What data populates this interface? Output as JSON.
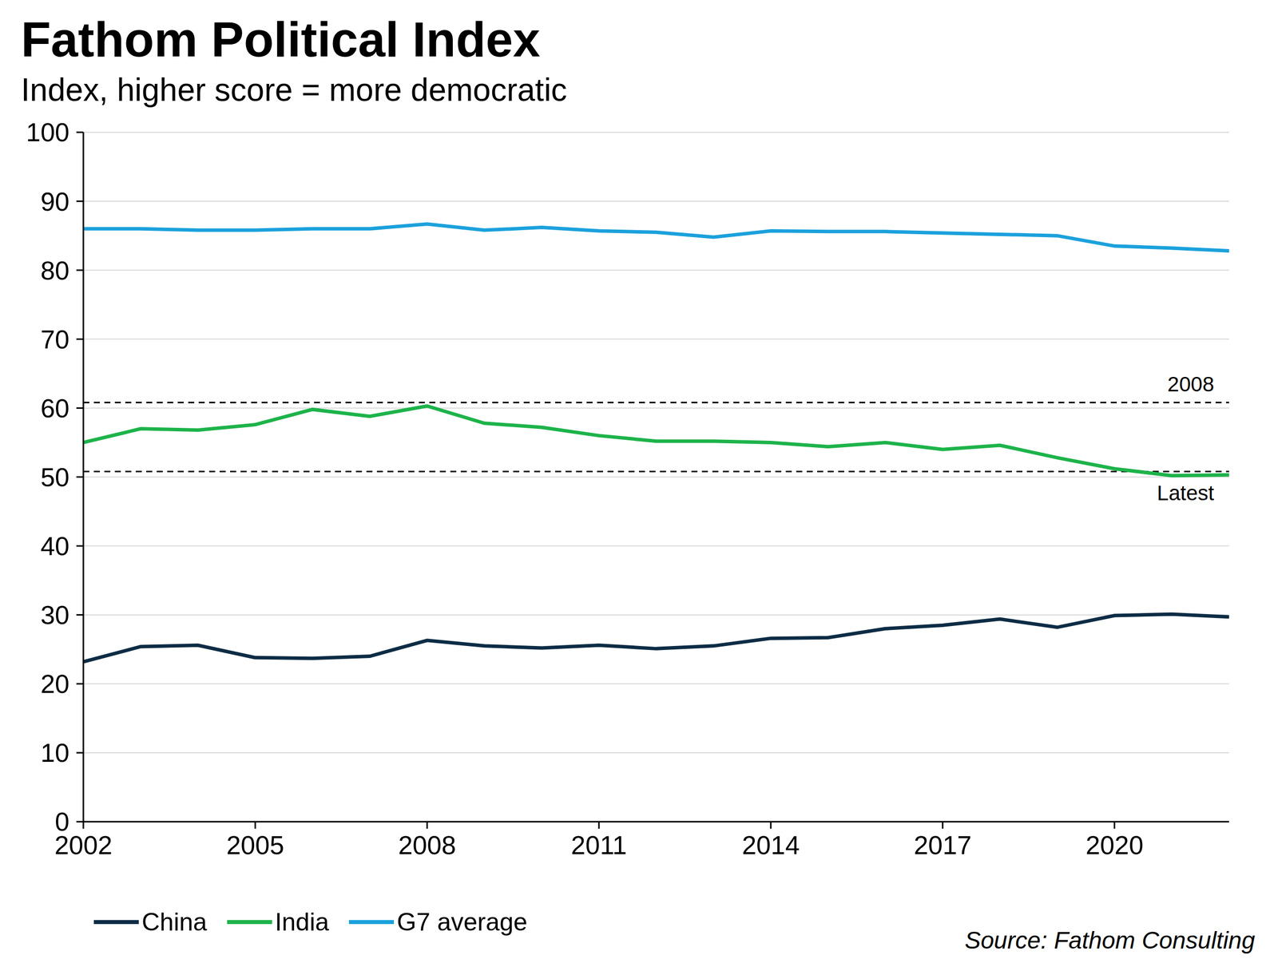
{
  "chart_data": {
    "type": "line",
    "title": "Fathom Political Index",
    "subtitle": "Index, higher score = more democratic",
    "source": "Source: Fathom Consulting",
    "x": [
      2002,
      2003,
      2004,
      2005,
      2006,
      2007,
      2008,
      2009,
      2010,
      2011,
      2012,
      2013,
      2014,
      2015,
      2016,
      2017,
      2018,
      2019,
      2020,
      2021,
      2022
    ],
    "series": [
      {
        "name": "China",
        "color": "#0d2c45",
        "values": [
          23.2,
          25.4,
          25.6,
          23.8,
          23.7,
          24.0,
          26.3,
          25.5,
          25.2,
          25.6,
          25.1,
          25.5,
          26.6,
          26.7,
          28.0,
          28.5,
          29.4,
          28.2,
          29.9,
          30.1,
          29.7
        ]
      },
      {
        "name": "India",
        "color": "#1db34a",
        "values": [
          55.0,
          57.0,
          56.8,
          57.6,
          59.8,
          58.8,
          60.3,
          57.8,
          57.2,
          56.0,
          55.2,
          55.2,
          55.0,
          54.4,
          55.0,
          54.0,
          54.6,
          52.8,
          51.2,
          50.2,
          50.3
        ]
      },
      {
        "name": "G7 average",
        "color": "#1ba1dc",
        "values": [
          86.0,
          86.0,
          85.8,
          85.8,
          86.0,
          86.0,
          86.7,
          85.8,
          86.2,
          85.7,
          85.5,
          84.8,
          85.7,
          85.6,
          85.6,
          85.4,
          85.2,
          85.0,
          83.5,
          83.2,
          82.8
        ]
      }
    ],
    "annotations": [
      {
        "value": 60.8,
        "label": "2008"
      },
      {
        "value": 50.8,
        "label": "Latest"
      }
    ],
    "xlim": [
      2002,
      2022
    ],
    "xticks": [
      2002,
      2005,
      2008,
      2011,
      2014,
      2017,
      2020
    ],
    "ylim": [
      0,
      100
    ],
    "yticks": [
      0,
      10,
      20,
      30,
      40,
      50,
      60,
      70,
      80,
      90,
      100
    ],
    "grid": true
  }
}
